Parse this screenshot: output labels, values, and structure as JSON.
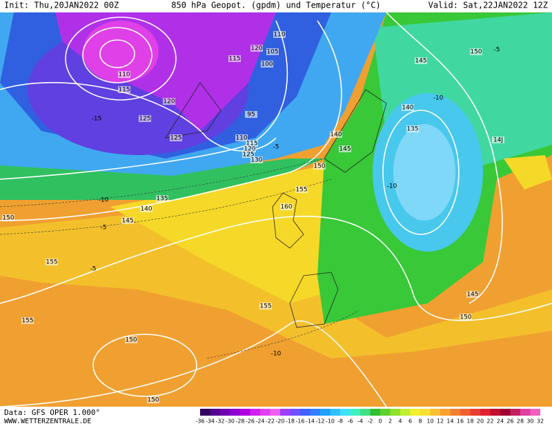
{
  "header": {
    "init": "Init: Thu,20JAN2022 00Z",
    "title": "850 hPa Geopot. (gpdm) und Temperatur (°C)",
    "valid": "Valid: Sat,22JAN2022 12Z"
  },
  "footer": {
    "data": "Data: GFS OPER 1.000°",
    "source": "WWW.WETTERZENTRALE.DE"
  },
  "colorbar": {
    "labels": [
      -36,
      -34,
      -32,
      -30,
      -28,
      -26,
      -24,
      -22,
      -20,
      -18,
      -16,
      -14,
      -12,
      -10,
      -8,
      -6,
      -4,
      -2,
      0,
      2,
      4,
      6,
      8,
      10,
      12,
      14,
      16,
      18,
      20,
      22,
      24,
      26,
      28,
      30,
      32
    ]
  },
  "map": {
    "contour_labels": [
      "110",
      "115",
      "120",
      "125",
      "125",
      "135",
      "140",
      "145",
      "150",
      "155",
      "155",
      "150",
      "150",
      "155",
      "160",
      "155",
      "150",
      "145",
      "140",
      "135",
      "140",
      "145",
      "150",
      "14J",
      "145",
      "150",
      "110",
      "120",
      "115",
      "105",
      "100",
      "95",
      "110",
      "115",
      "120",
      "125",
      "130"
    ],
    "temperature_labels": [
      "-15",
      "-10",
      "-5",
      "-5",
      "-10",
      "-10",
      "-10",
      "-5",
      "-5"
    ]
  }
}
